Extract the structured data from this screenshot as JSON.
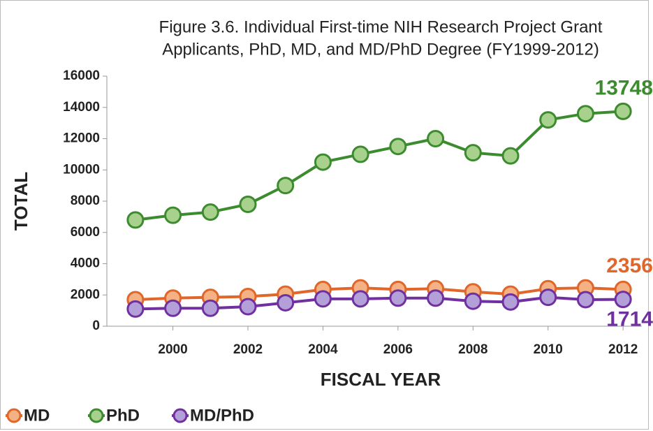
{
  "chart_data": {
    "type": "line",
    "title": [
      "Figure 3.6. Individual First-time NIH Research Project Grant",
      "Applicants, PhD, MD, and MD/PhD Degree (FY1999-2012)"
    ],
    "x_label": "FISCAL YEAR",
    "y_label": "TOTAL",
    "x": [
      1999,
      2000,
      2001,
      2002,
      2003,
      2004,
      2005,
      2006,
      2007,
      2008,
      2009,
      2010,
      2011,
      2012
    ],
    "series": [
      {
        "name": "MD",
        "color": "#e0662a",
        "fill": "#f4b183",
        "values": [
          1700,
          1800,
          1850,
          1900,
          2050,
          2350,
          2450,
          2350,
          2400,
          2200,
          2050,
          2400,
          2450,
          2356
        ]
      },
      {
        "name": "PhD",
        "color": "#3c8c2f",
        "fill": "#a9d18e",
        "values": [
          6800,
          7100,
          7300,
          7800,
          9000,
          10500,
          11000,
          11500,
          12000,
          11100,
          10900,
          13200,
          13600,
          13748
        ]
      },
      {
        "name": "MD/PhD",
        "color": "#7030a0",
        "fill": "#b4a0d8",
        "values": [
          1100,
          1150,
          1150,
          1250,
          1500,
          1750,
          1750,
          1800,
          1800,
          1600,
          1550,
          1850,
          1700,
          1714
        ]
      }
    ],
    "xlim": [
      1998.5,
      2012.5
    ],
    "xticks": [
      2000,
      2002,
      2004,
      2006,
      2008,
      2010,
      2012
    ],
    "ylim": [
      0,
      16000
    ],
    "yticks": [
      0,
      2000,
      4000,
      6000,
      8000,
      10000,
      12000,
      14000,
      16000
    ],
    "legend": "bottom-left"
  }
}
